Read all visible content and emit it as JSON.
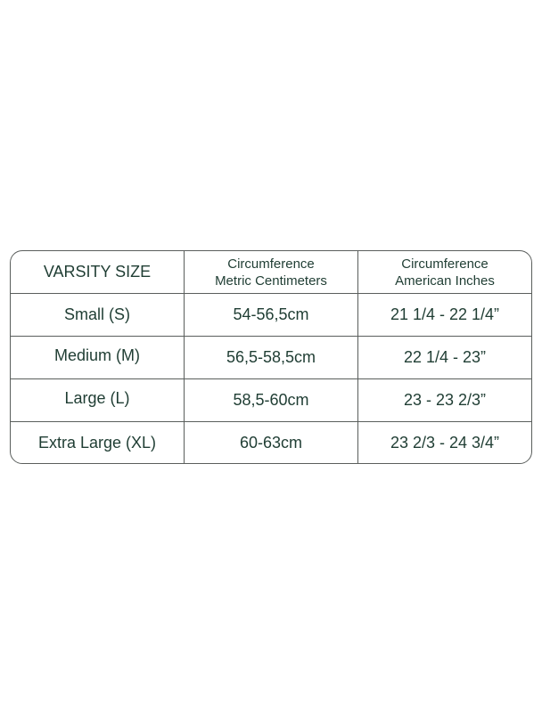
{
  "table": {
    "headers": [
      {
        "line1": "VARSITY SIZE",
        "line2": ""
      },
      {
        "line1": "Circumference",
        "line2": "Metric Centimeters"
      },
      {
        "line1": "Circumference",
        "line2": "American Inches"
      }
    ],
    "rows": [
      [
        "Small (S)",
        "54-56,5cm",
        "21 1/4 - 22 1/4”"
      ],
      [
        "Medium (M)",
        "56,5-58,5cm",
        "22 1/4 - 23”"
      ],
      [
        "Large (L)",
        "58,5-60cm",
        "23 - 23 2/3”"
      ],
      [
        "Extra Large (XL)",
        "60-63cm",
        "23 2/3 - 24 3/4”"
      ]
    ]
  },
  "colors": {
    "text": "#1f3d33",
    "border": "#5a5e5c"
  }
}
